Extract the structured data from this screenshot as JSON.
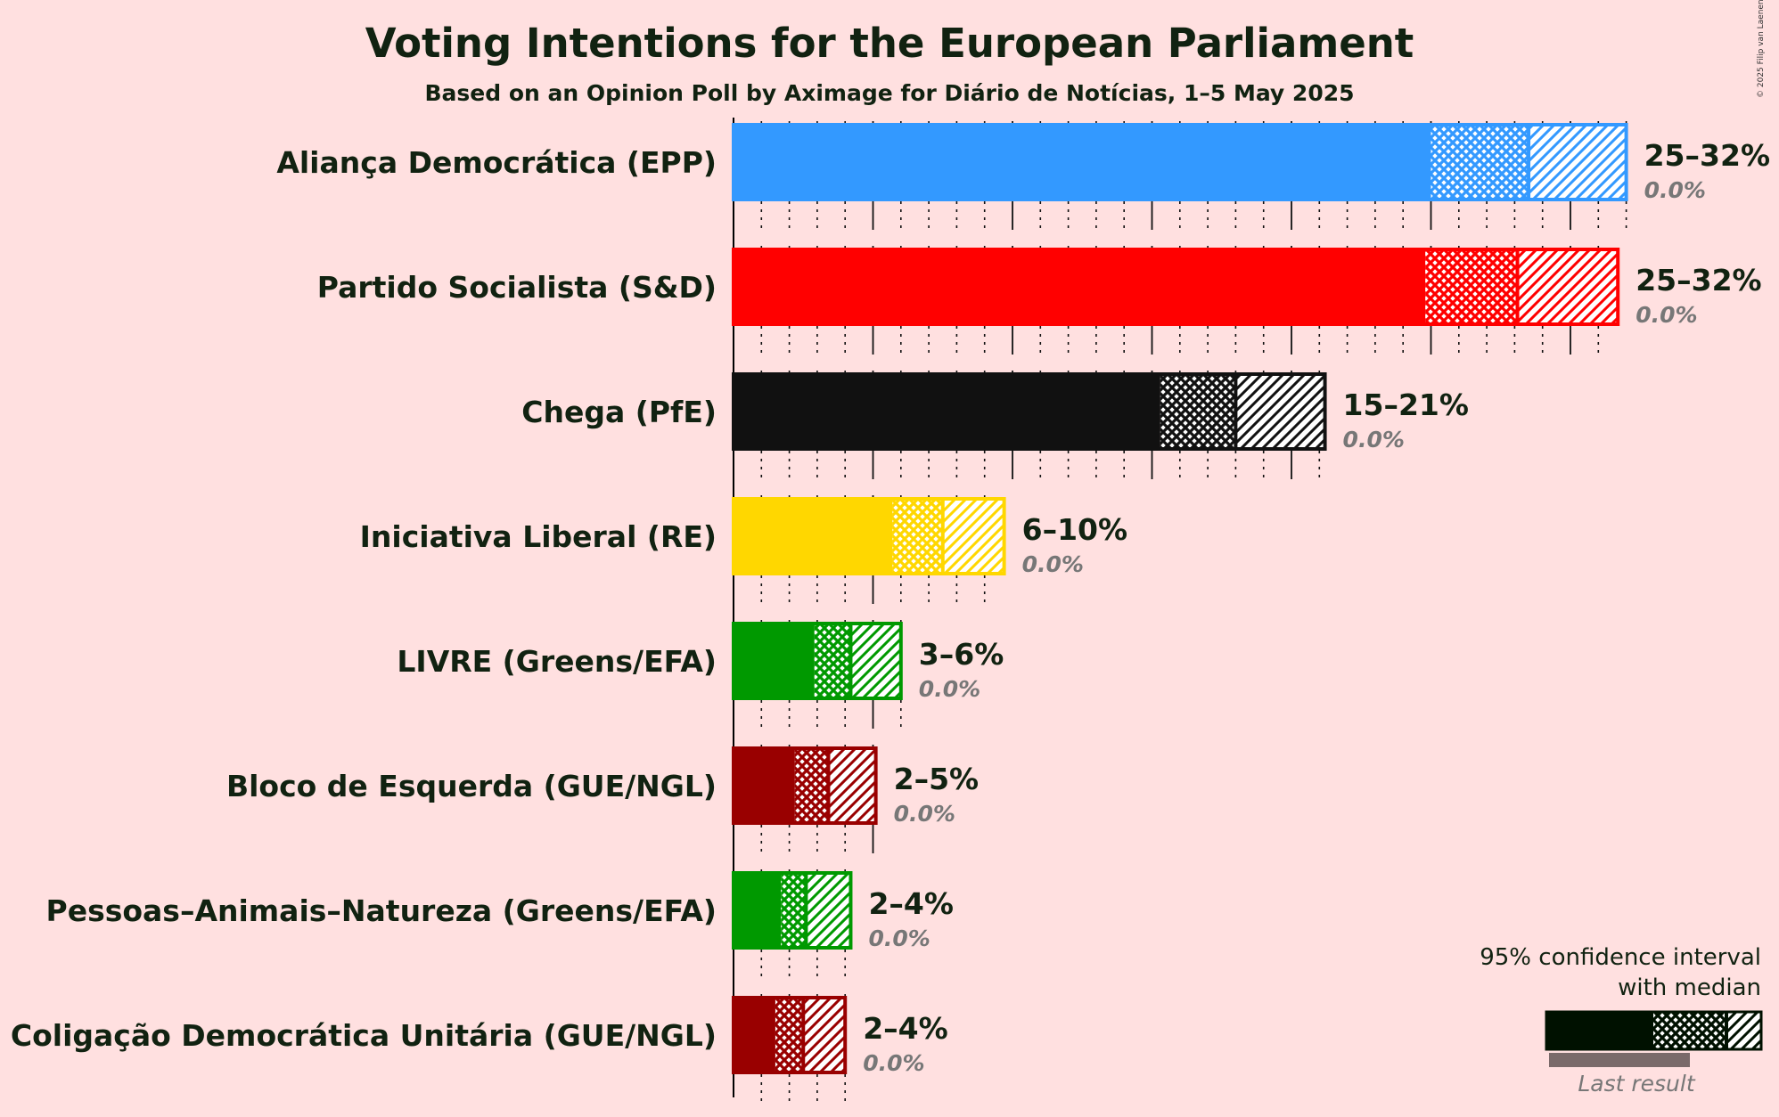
{
  "chart_data": {
    "type": "bar",
    "title": "Voting Intentions for the European Parliament",
    "subtitle": "Based on an Opinion Poll by Aximage for Diário de Notícias, 1–5 May 2025",
    "xlim": [
      0,
      32
    ],
    "grid": true,
    "legend_placement": "bottom-right",
    "parties": [
      {
        "name": "Aliança Democrática (EPP)",
        "color": "#3399FF",
        "low": 25,
        "median": 28.5,
        "high": 32,
        "label": "25–32%",
        "last_result": 0.0,
        "last_label": "0.0%"
      },
      {
        "name": "Partido Socialista (S&D)",
        "color": "#FF0000",
        "low": 24.8,
        "median": 28.1,
        "high": 31.7,
        "label": "25–32%",
        "last_result": 0.0,
        "last_label": "0.0%"
      },
      {
        "name": "Chega (PfE)",
        "color": "#111111",
        "low": 15.3,
        "median": 18,
        "high": 21.2,
        "label": "15–21%",
        "last_result": 0.0,
        "last_label": "0.0%"
      },
      {
        "name": "Iniciativa Liberal (RE)",
        "color": "#FFD700",
        "low": 5.7,
        "median": 7.5,
        "high": 9.7,
        "label": "6–10%",
        "last_result": 0.0,
        "last_label": "0.0%"
      },
      {
        "name": "LIVRE (Greens/EFA)",
        "color": "#009900",
        "low": 2.9,
        "median": 4.2,
        "high": 6.0,
        "label": "3–6%",
        "last_result": 0.0,
        "last_label": "0.0%"
      },
      {
        "name": "Bloco de Esquerda (GUE/NGL)",
        "color": "#990000",
        "low": 2.2,
        "median": 3.4,
        "high": 5.1,
        "label": "2–5%",
        "last_result": 0.0,
        "last_label": "0.0%"
      },
      {
        "name": "Pessoas–Animais–Natureza (Greens/EFA)",
        "color": "#009900",
        "low": 1.7,
        "median": 2.6,
        "high": 4.2,
        "label": "2–4%",
        "last_result": 0.0,
        "last_label": "0.0%"
      },
      {
        "name": "Coligação Democrática Unitária (GUE/NGL)",
        "color": "#990000",
        "low": 1.5,
        "median": 2.5,
        "high": 4.0,
        "label": "2–4%",
        "last_result": 0.0,
        "last_label": "0.0%"
      }
    ]
  },
  "legend": {
    "line1": "95% confidence interval",
    "line2": "with median",
    "last_result_label": "Last result",
    "color": "#001100"
  },
  "copyright": "© 2025 Filip van Laenen"
}
